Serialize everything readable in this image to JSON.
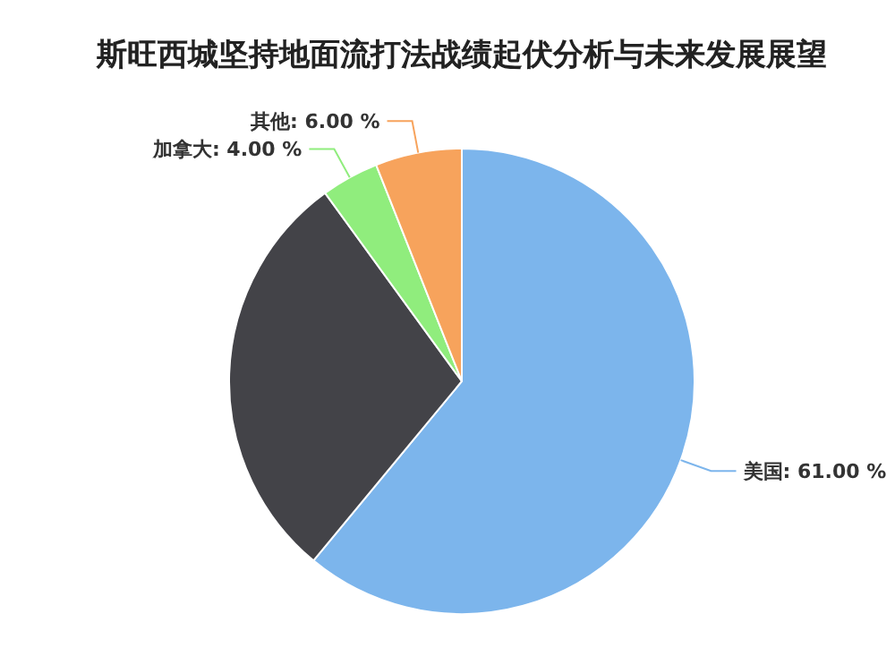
{
  "chart_data": {
    "type": "pie",
    "title": "斯旺西城坚持地面流打法战绩起伏分析与未来发展展望",
    "categories": [
      "美国",
      null,
      "加拿大",
      "其他"
    ],
    "values": [
      61,
      29,
      4,
      6
    ],
    "colors": [
      "#7cb5ec",
      "#434348",
      "#90ed7d",
      "#f7a35c"
    ],
    "value_labels": [
      "61.00 %",
      null,
      "4.00 %",
      "6.00 %"
    ]
  }
}
